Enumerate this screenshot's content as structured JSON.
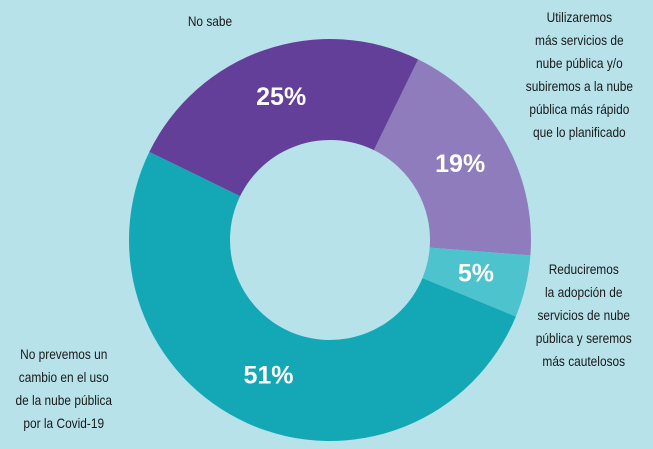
{
  "chart_data": {
    "type": "donut",
    "categories": [
      "Utilizaremos\nmás servicios de\nnube pública y/o\nsubiremos a la nube\npública más rápido\nque lo planificado",
      "Reduciremos\nla adopción de\nservicios de nube\npública y seremos\nmás cautelosos",
      "No prevemos un\ncambio en el uso\nde la nube pública\npor la Covid-19",
      "No sabe"
    ],
    "values": [
      19,
      5,
      51,
      25
    ],
    "value_labels": [
      "19%",
      "5%",
      "51%",
      "25%"
    ],
    "colors": [
      "#8f7cbc",
      "#4cc3cd",
      "#14a8b6",
      "#633f99"
    ]
  }
}
